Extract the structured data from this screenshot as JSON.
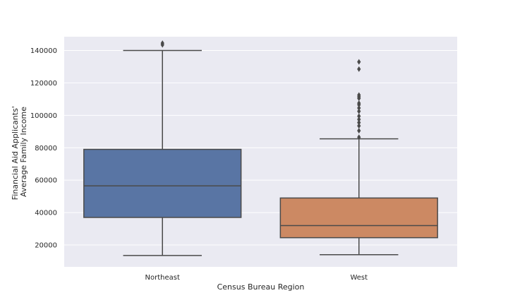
{
  "chart_data": {
    "type": "box",
    "xlabel": "Census Bureau Region",
    "ylabel_lines": [
      "Financial Aid Applicants'",
      "Average Family Income"
    ],
    "ylim": [
      6500,
      148500
    ],
    "y_ticks": [
      20000,
      40000,
      60000,
      80000,
      100000,
      120000,
      140000
    ],
    "y_tick_labels": [
      "20000",
      "40000",
      "60000",
      "80000",
      "100000",
      "120000",
      "140000"
    ],
    "grid": true,
    "background_color": "#eaeaf2",
    "categories": [
      "Northeast",
      "West"
    ],
    "boxes": [
      {
        "category": "Northeast",
        "color": "#5975a4",
        "whisker_low": 13500,
        "q1": 37000,
        "median": 56500,
        "q3": 79000,
        "whisker_high": 140000,
        "outliers": [
          143500,
          144500
        ]
      },
      {
        "category": "West",
        "color": "#cc8963",
        "whisker_low": 14000,
        "q1": 24500,
        "median": 32000,
        "q3": 49000,
        "whisker_high": 85500,
        "outliers": [
          86500,
          90500,
          93500,
          95500,
          97500,
          99500,
          102500,
          104500,
          106500,
          107500,
          110500,
          111500,
          112500,
          128500,
          133000
        ]
      }
    ]
  }
}
